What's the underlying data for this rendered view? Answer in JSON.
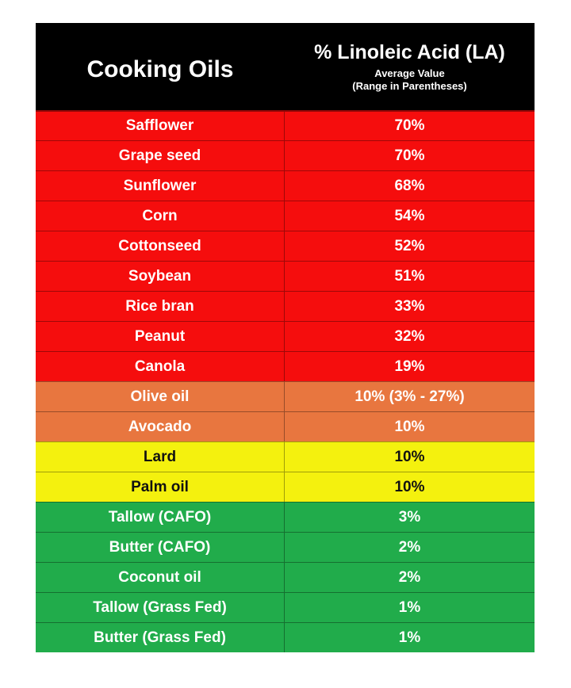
{
  "header": {
    "col1": "Cooking Oils",
    "col2_main": "% Linoleic Acid (LA)",
    "col2_sub1": "Average Value",
    "col2_sub2": "(Range in Parentheses)"
  },
  "colors": {
    "red": "#f50d0d",
    "orange": "#e8763f",
    "yellow": "#f4f10e",
    "green": "#21ac4b"
  },
  "rows": [
    {
      "oil": "Safflower",
      "value": "70%",
      "color": "red"
    },
    {
      "oil": "Grape seed",
      "value": "70%",
      "color": "red"
    },
    {
      "oil": "Sunflower",
      "value": "68%",
      "color": "red"
    },
    {
      "oil": "Corn",
      "value": "54%",
      "color": "red"
    },
    {
      "oil": "Cottonseed",
      "value": "52%",
      "color": "red"
    },
    {
      "oil": "Soybean",
      "value": "51%",
      "color": "red"
    },
    {
      "oil": "Rice bran",
      "value": "33%",
      "color": "red"
    },
    {
      "oil": "Peanut",
      "value": "32%",
      "color": "red"
    },
    {
      "oil": "Canola",
      "value": "19%",
      "color": "red"
    },
    {
      "oil": "Olive oil",
      "value": "10% (3% - 27%)",
      "color": "orange"
    },
    {
      "oil": "Avocado",
      "value": "10%",
      "color": "orange"
    },
    {
      "oil": "Lard",
      "value": "10%",
      "color": "yellow"
    },
    {
      "oil": "Palm oil",
      "value": "10%",
      "color": "yellow"
    },
    {
      "oil": "Tallow (CAFO)",
      "value": "3%",
      "color": "green"
    },
    {
      "oil": "Butter (CAFO)",
      "value": "2%",
      "color": "green"
    },
    {
      "oil": "Coconut oil",
      "value": "2%",
      "color": "green"
    },
    {
      "oil": "Tallow (Grass Fed)",
      "value": "1%",
      "color": "green"
    },
    {
      "oil": "Butter (Grass Fed)",
      "value": "1%",
      "color": "green"
    }
  ]
}
